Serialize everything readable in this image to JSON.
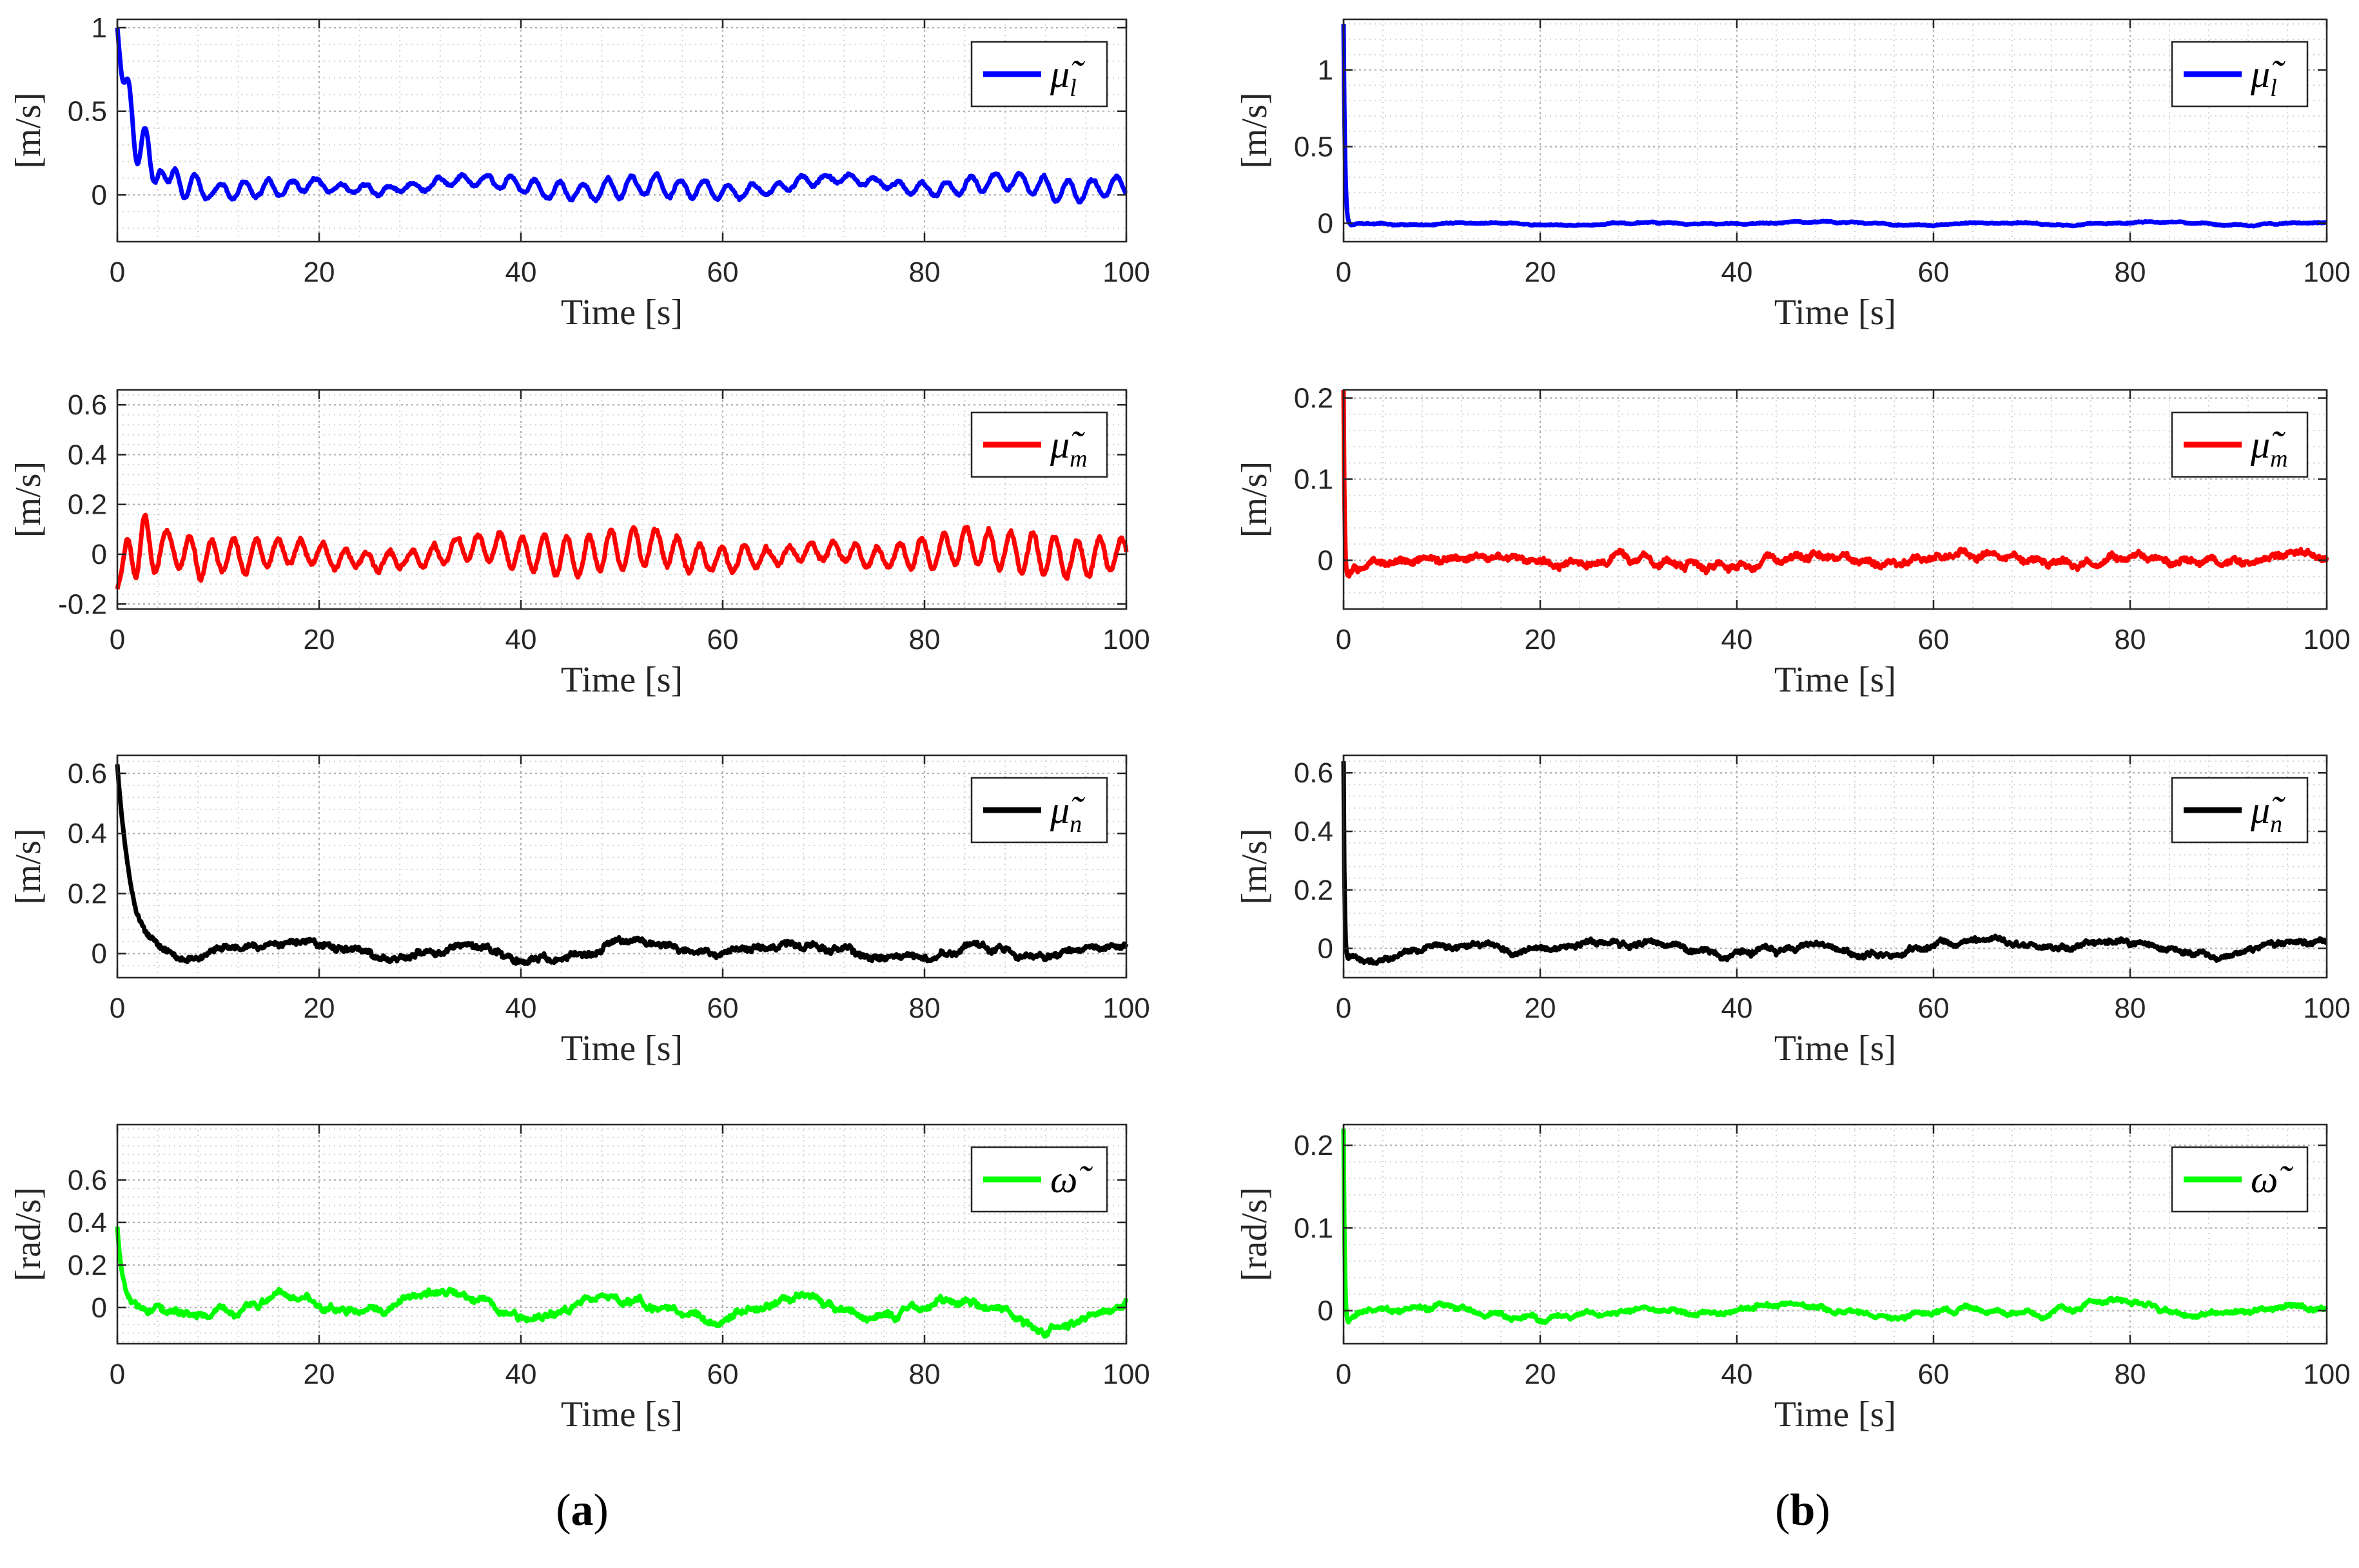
{
  "panels": [
    {
      "label_open": "(",
      "label_letter": "a",
      "label_close": ")"
    },
    {
      "label_open": "(",
      "label_letter": "b",
      "label_close": ")"
    }
  ],
  "chart_data": [
    {
      "id": "a1",
      "type": "line",
      "column": 0,
      "row": 0,
      "title": "",
      "xlabel": "Time [s]",
      "ylabel": "[m/s]",
      "xlim": [
        0,
        100
      ],
      "ylim": [
        -0.28,
        1.05
      ],
      "xticks": [
        0,
        20,
        40,
        60,
        80,
        100
      ],
      "yticks": [
        0,
        0.5,
        1
      ],
      "ytick_labels": [
        "0",
        "0.5",
        "1"
      ],
      "grid": true,
      "series": [
        {
          "name": "μ̃",
          "sub": "l",
          "color": "#0000ff",
          "model": {
            "init": 1.0,
            "decay": 1.6,
            "transient_osc": 0.45,
            "base": 0.05,
            "wobble_amp": 0.06,
            "wobble_period": 2.4,
            "wander": 0.04,
            "noise": 0.01
          }
        }
      ]
    },
    {
      "id": "a2",
      "type": "line",
      "column": 0,
      "row": 1,
      "title": "",
      "xlabel": "Time [s]",
      "ylabel": "[m/s]",
      "xlim": [
        0,
        100
      ],
      "ylim": [
        -0.22,
        0.66
      ],
      "xticks": [
        0,
        20,
        40,
        60,
        80,
        100
      ],
      "yticks": [
        -0.2,
        0,
        0.2,
        0.4,
        0.6
      ],
      "ytick_labels": [
        "-0.2",
        "0",
        "0.2",
        "0.4",
        "0.6"
      ],
      "grid": true,
      "series": [
        {
          "name": "μ̃",
          "sub": "m",
          "color": "#ff0000",
          "model": {
            "init": -0.14,
            "decay": 0.7,
            "transient_osc": 0.12,
            "base": 0.0,
            "wobble_amp": 0.08,
            "wobble_period": 2.2,
            "wander": 0.03,
            "noise": 0.012
          }
        }
      ]
    },
    {
      "id": "a3",
      "type": "line",
      "column": 0,
      "row": 2,
      "title": "",
      "xlabel": "Time [s]",
      "ylabel": "[m/s]",
      "xlim": [
        0,
        100
      ],
      "ylim": [
        -0.08,
        0.66
      ],
      "xticks": [
        0,
        20,
        40,
        60,
        80,
        100
      ],
      "yticks": [
        0,
        0.2,
        0.4,
        0.6
      ],
      "ytick_labels": [
        "0",
        "0.2",
        "0.4",
        "0.6"
      ],
      "grid": true,
      "series": [
        {
          "name": "μ̃",
          "sub": "n",
          "color": "#000000",
          "model": {
            "init": 0.63,
            "decay": 1.3,
            "transient_osc": 0.0,
            "base": 0.01,
            "wobble_amp": 0.005,
            "wobble_period": 3.0,
            "wander": 0.03,
            "noise": 0.012
          }
        }
      ]
    },
    {
      "id": "a4",
      "type": "line",
      "column": 0,
      "row": 3,
      "title": "",
      "xlabel": "Time [s]",
      "ylabel": "[rad/s]",
      "xlim": [
        0,
        100
      ],
      "ylim": [
        -0.17,
        0.86
      ],
      "xticks": [
        0,
        20,
        40,
        60,
        80,
        100
      ],
      "yticks": [
        0,
        0.2,
        0.4,
        0.6
      ],
      "ytick_labels": [
        "0",
        "0.2",
        "0.4",
        "0.6"
      ],
      "grid": true,
      "series": [
        {
          "name": "ω̃",
          "sub": "",
          "color": "#00ff00",
          "model": {
            "init": 0.38,
            "decay": 0.5,
            "transient_osc": 0.0,
            "base": 0.0,
            "wobble_amp": 0.01,
            "wobble_period": 3.0,
            "wander": 0.07,
            "noise": 0.015
          }
        }
      ]
    },
    {
      "id": "b1",
      "type": "line",
      "column": 1,
      "row": 0,
      "title": "",
      "xlabel": "Time [s]",
      "ylabel": "[m/s]",
      "xlim": [
        0,
        100
      ],
      "ylim": [
        -0.12,
        1.33
      ],
      "xticks": [
        0,
        20,
        40,
        60,
        80,
        100
      ],
      "yticks": [
        0,
        0.5,
        1
      ],
      "ytick_labels": [
        "0",
        "0.5",
        "1"
      ],
      "grid": true,
      "series": [
        {
          "name": "μ̃",
          "sub": "l",
          "color": "#0000ff",
          "model": {
            "init": 1.3,
            "decay": 0.15,
            "transient_osc": 0.0,
            "base": 0.0,
            "wobble_amp": 0.003,
            "wobble_period": 3.0,
            "wander": 0.012,
            "noise": 0.004,
            "undershoot": -0.1
          }
        }
      ]
    },
    {
      "id": "b2",
      "type": "line",
      "column": 1,
      "row": 1,
      "title": "",
      "xlabel": "Time [s]",
      "ylabel": "[m/s]",
      "xlim": [
        0,
        100
      ],
      "ylim": [
        -0.06,
        0.21
      ],
      "xticks": [
        0,
        20,
        40,
        60,
        80,
        100
      ],
      "yticks": [
        0,
        0.1,
        0.2
      ],
      "ytick_labels": [
        "0",
        "0.1",
        "0.2"
      ],
      "grid": true,
      "series": [
        {
          "name": "μ̃",
          "sub": "m",
          "color": "#ff0000",
          "model": {
            "init": 0.21,
            "decay": 0.12,
            "transient_osc": 0.0,
            "base": 0.0,
            "wobble_amp": 0.004,
            "wobble_period": 2.5,
            "wander": 0.006,
            "noise": 0.005,
            "undershoot": -0.055
          }
        }
      ]
    },
    {
      "id": "b3",
      "type": "line",
      "column": 1,
      "row": 2,
      "title": "",
      "xlabel": "Time [s]",
      "ylabel": "[m/s]",
      "xlim": [
        0,
        100
      ],
      "ylim": [
        -0.1,
        0.66
      ],
      "xticks": [
        0,
        20,
        40,
        60,
        80,
        100
      ],
      "yticks": [
        0,
        0.2,
        0.4,
        0.6
      ],
      "ytick_labels": [
        "0",
        "0.2",
        "0.4",
        "0.6"
      ],
      "grid": true,
      "series": [
        {
          "name": "μ̃",
          "sub": "n",
          "color": "#000000",
          "model": {
            "init": 0.64,
            "decay": 0.1,
            "transient_osc": 0.0,
            "base": 0.0,
            "wobble_amp": 0.005,
            "wobble_period": 3.0,
            "wander": 0.025,
            "noise": 0.01,
            "undershoot": -0.07
          }
        }
      ]
    },
    {
      "id": "b4",
      "type": "line",
      "column": 1,
      "row": 3,
      "title": "",
      "xlabel": "Time [s]",
      "ylabel": "[rad/s]",
      "xlim": [
        0,
        100
      ],
      "ylim": [
        -0.04,
        0.225
      ],
      "xticks": [
        0,
        20,
        40,
        60,
        80,
        100
      ],
      "yticks": [
        0,
        0.1,
        0.2
      ],
      "ytick_labels": [
        "0",
        "0.1",
        "0.2"
      ],
      "grid": true,
      "series": [
        {
          "name": "ω̃",
          "sub": "",
          "color": "#00ff00",
          "model": {
            "init": 0.22,
            "decay": 0.12,
            "transient_osc": 0.0,
            "base": 0.0,
            "wobble_amp": 0.002,
            "wobble_period": 3.0,
            "wander": 0.008,
            "noise": 0.003,
            "undershoot": -0.035
          }
        }
      ]
    }
  ]
}
